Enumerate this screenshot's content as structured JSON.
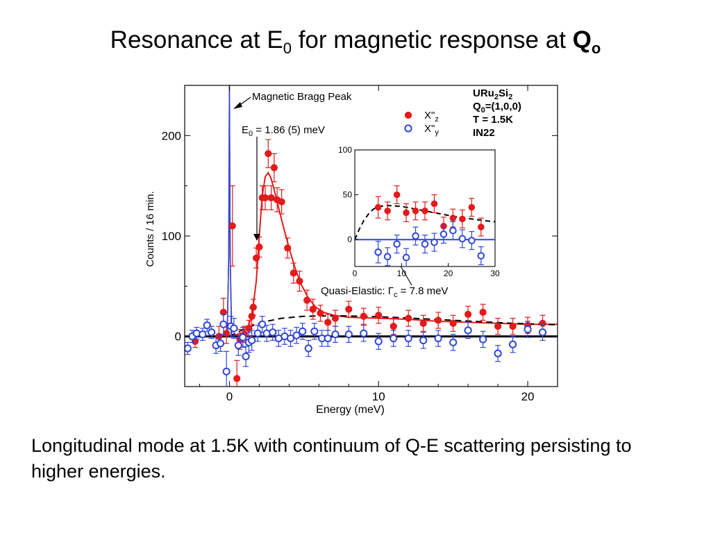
{
  "title": {
    "prefix": "Resonance at E",
    "sub1": "0",
    "middle": " for magnetic response at ",
    "bold": "Q",
    "sub2": "o"
  },
  "caption": "Longitudinal mode at 1.5K with continuum of Q-E scattering persisting to higher energies.",
  "colors": {
    "red": "#e31b1b",
    "blue": "#2f46d9",
    "black": "#000000"
  },
  "chart_data": [
    {
      "type": "scatter",
      "xlabel": "Energy (meV)",
      "ylabel": "Counts / 16 min.",
      "xlim": [
        -3,
        22
      ],
      "ylim": [
        -50,
        250
      ],
      "xticks": [
        0,
        10,
        20
      ],
      "yticks": [
        0,
        100,
        200
      ],
      "legend_position": "top-right",
      "info_lines": [
        {
          "main": "URu",
          "sub": "2",
          "tail": "Si",
          "sub2": "2"
        },
        {
          "main": "Q",
          "sub": "0",
          "tail": "=(1,0,0)",
          "sub2": ""
        },
        {
          "main": "T = 1.5K",
          "sub": "",
          "tail": "",
          "sub2": ""
        },
        {
          "main": "IN22",
          "sub": "",
          "tail": "",
          "sub2": ""
        }
      ],
      "annotations": {
        "bragg": "Magnetic Bragg Peak",
        "e0_main": "E",
        "e0_sub": "0",
        "e0_tail": " = 1.86 (5) meV",
        "qe_main": "Quasi-Elastic: ",
        "qe_gamma": "Γ",
        "qe_sub": "c",
        "qe_tail": " = 7.8 meV"
      },
      "series": [
        {
          "name": "X\"z",
          "legend_main": "X\"",
          "legend_sub": "z",
          "marker": "filled-circle",
          "color": "#e31b1b",
          "points": [
            [
              -2.3,
              -5,
              6
            ],
            [
              -0.7,
              0,
              10
            ],
            [
              -0.4,
              24,
              14
            ],
            [
              -0.2,
              3,
              10
            ],
            [
              0.2,
              110,
              40
            ],
            [
              0.5,
              -42,
              18
            ],
            [
              0.7,
              -3,
              10
            ],
            [
              1.0,
              2,
              8
            ],
            [
              1.3,
              8,
              8
            ],
            [
              1.5,
              20,
              8
            ],
            [
              1.6,
              29,
              8
            ],
            [
              1.8,
              78,
              10
            ],
            [
              2.0,
              89,
              10
            ],
            [
              2.2,
              138,
              12
            ],
            [
              2.4,
              138,
              12
            ],
            [
              2.6,
              182,
              14
            ],
            [
              2.8,
              138,
              12
            ],
            [
              3.0,
              168,
              14
            ],
            [
              3.2,
              136,
              12
            ],
            [
              3.5,
              134,
              12
            ],
            [
              3.9,
              88,
              10
            ],
            [
              4.3,
              63,
              10
            ],
            [
              4.7,
              55,
              10
            ],
            [
              5.2,
              36,
              10
            ],
            [
              5.6,
              27,
              10
            ],
            [
              6.1,
              23,
              8
            ],
            [
              6.6,
              14,
              8
            ],
            [
              7.1,
              18,
              8
            ],
            [
              8.0,
              27,
              8
            ],
            [
              9.0,
              20,
              8
            ],
            [
              10.0,
              21,
              8
            ],
            [
              11.0,
              10,
              8
            ],
            [
              12.0,
              18,
              8
            ],
            [
              13.0,
              13,
              8
            ],
            [
              14.0,
              16,
              8
            ],
            [
              15.0,
              13,
              8
            ],
            [
              16.0,
              22,
              8
            ],
            [
              17.0,
              24,
              8
            ],
            [
              18.0,
              10,
              8
            ],
            [
              19.0,
              10,
              8
            ],
            [
              20.0,
              11,
              8
            ],
            [
              21.0,
              13,
              8
            ]
          ]
        },
        {
          "name": "X\"y",
          "legend_main": "X\"",
          "legend_sub": "y",
          "marker": "open-circle",
          "color": "#2f46d9",
          "points": [
            [
              -2.8,
              -12,
              6
            ],
            [
              -2.5,
              0,
              6
            ],
            [
              -2.2,
              3,
              6
            ],
            [
              -1.8,
              2,
              6
            ],
            [
              -1.5,
              11,
              6
            ],
            [
              -1.2,
              4,
              6
            ],
            [
              -0.9,
              -9,
              8
            ],
            [
              -0.6,
              -7,
              8
            ],
            [
              -0.4,
              12,
              10
            ],
            [
              -0.2,
              -35,
              20
            ],
            [
              0.1,
              10,
              10
            ],
            [
              0.3,
              8,
              10
            ],
            [
              0.6,
              -9,
              10
            ],
            [
              0.9,
              -1,
              10
            ],
            [
              1.1,
              -20,
              10
            ],
            [
              1.3,
              -6,
              10
            ],
            [
              1.5,
              -4,
              10
            ],
            [
              1.9,
              3,
              8
            ],
            [
              2.2,
              12,
              8
            ],
            [
              2.5,
              3,
              8
            ],
            [
              2.9,
              4,
              8
            ],
            [
              3.3,
              -2,
              8
            ],
            [
              3.7,
              0,
              8
            ],
            [
              4.1,
              -2,
              8
            ],
            [
              4.5,
              1,
              8
            ],
            [
              4.9,
              5,
              8
            ],
            [
              5.3,
              -12,
              8
            ],
            [
              5.7,
              5,
              8
            ],
            [
              6.2,
              -2,
              8
            ],
            [
              6.6,
              -2,
              8
            ],
            [
              7.1,
              2,
              8
            ],
            [
              8.0,
              2,
              8
            ],
            [
              9.0,
              3,
              8
            ],
            [
              10.0,
              -5,
              8
            ],
            [
              11.0,
              -2,
              8
            ],
            [
              12.0,
              -2,
              8
            ],
            [
              13.0,
              -4,
              8
            ],
            [
              14.0,
              -2,
              8
            ],
            [
              15.0,
              -6,
              8
            ],
            [
              16.0,
              6,
              8
            ],
            [
              17.0,
              -3,
              8
            ],
            [
              18.0,
              -17,
              8
            ],
            [
              19.0,
              -8,
              8
            ],
            [
              20.0,
              7,
              8
            ],
            [
              21.0,
              4,
              8
            ]
          ]
        }
      ],
      "curves": [
        {
          "role": "resonance fit",
          "color": "#e31b1b",
          "style": "solid",
          "points": [
            [
              -0.5,
              0
            ],
            [
              0.2,
              1
            ],
            [
              0.8,
              3
            ],
            [
              1.2,
              8
            ],
            [
              1.5,
              20
            ],
            [
              1.8,
              55
            ],
            [
              2.0,
              100
            ],
            [
              2.2,
              140
            ],
            [
              2.4,
              159
            ],
            [
              2.6,
              163
            ],
            [
              2.8,
              157
            ],
            [
              3.0,
              146
            ],
            [
              3.3,
              128
            ],
            [
              3.6,
              110
            ],
            [
              4.0,
              88
            ],
            [
              4.4,
              68
            ],
            [
              4.8,
              52
            ],
            [
              5.3,
              38
            ],
            [
              5.8,
              29
            ],
            [
              6.3,
              24
            ],
            [
              7.0,
              21
            ],
            [
              8.0,
              19
            ],
            [
              10.0,
              18
            ],
            [
              12.0,
              17
            ],
            [
              14.0,
              15
            ],
            [
              16.0,
              14
            ],
            [
              18.0,
              13
            ],
            [
              20.0,
              12
            ],
            [
              22.0,
              12
            ]
          ]
        },
        {
          "role": "quasi-elastic",
          "color": "#000000",
          "style": "dashed",
          "points": [
            [
              0,
              0
            ],
            [
              0.8,
              6
            ],
            [
              1.6,
              11
            ],
            [
              2.5,
              15
            ],
            [
              3.5,
              18
            ],
            [
              5.0,
              20
            ],
            [
              7.0,
              20.5
            ],
            [
              9.0,
              20
            ],
            [
              11.0,
              19
            ],
            [
              13.0,
              17.5
            ],
            [
              15.0,
              16
            ],
            [
              17.0,
              14.5
            ],
            [
              19.0,
              13
            ],
            [
              21.0,
              12
            ],
            [
              22.0,
              11.5
            ]
          ]
        },
        {
          "role": "background",
          "color": "#000000",
          "style": "solid",
          "points": [
            [
              -3,
              0
            ],
            [
              22,
              0
            ]
          ]
        },
        {
          "role": "magnetic Bragg peak",
          "color": "#e31b1b",
          "style": "solid",
          "points": [
            [
              -0.15,
              0
            ],
            [
              -0.05,
              80
            ],
            [
              0.0,
              250
            ],
            [
              0.05,
              80
            ],
            [
              0.15,
              0
            ]
          ]
        },
        {
          "role": "magnetic Bragg peak",
          "color": "#2f46d9",
          "style": "solid",
          "points": [
            [
              -0.15,
              0
            ],
            [
              -0.05,
              80
            ],
            [
              0.0,
              250
            ],
            [
              0.05,
              80
            ],
            [
              0.15,
              0
            ]
          ]
        }
      ]
    },
    {
      "type": "scatter",
      "role": "inset",
      "xlim": [
        0,
        30
      ],
      "ylim": [
        -30,
        100
      ],
      "xticks": [
        0,
        10,
        20,
        30
      ],
      "yticks": [
        0,
        50,
        100
      ],
      "series": [
        {
          "name": "X\"z",
          "marker": "filled-circle",
          "color": "#e31b1b",
          "points": [
            [
              5,
              36,
              12
            ],
            [
              7,
              32,
              10
            ],
            [
              9,
              50,
              10
            ],
            [
              11,
              30,
              10
            ],
            [
              13,
              32,
              10
            ],
            [
              15,
              32,
              10
            ],
            [
              17,
              40,
              10
            ],
            [
              19,
              15,
              10
            ],
            [
              21,
              24,
              10
            ],
            [
              23,
              23,
              10
            ],
            [
              25,
              36,
              10
            ],
            [
              27,
              14,
              10
            ]
          ]
        },
        {
          "name": "X\"y",
          "marker": "open-circle",
          "color": "#2f46d9",
          "points": [
            [
              5,
              -14,
              12
            ],
            [
              7,
              -19,
              10
            ],
            [
              9,
              -5,
              10
            ],
            [
              11,
              -20,
              10
            ],
            [
              13,
              4,
              10
            ],
            [
              15,
              -5,
              10
            ],
            [
              17,
              -3,
              10
            ],
            [
              19,
              6,
              10
            ],
            [
              21,
              10,
              10
            ],
            [
              23,
              1,
              10
            ],
            [
              25,
              -1,
              10
            ],
            [
              27,
              -18,
              10
            ]
          ]
        }
      ],
      "curves": [
        {
          "role": "quasi-elastic",
          "color": "#000000",
          "style": "dashed",
          "points": [
            [
              0,
              0
            ],
            [
              1,
              12
            ],
            [
              2,
              22
            ],
            [
              3,
              29
            ],
            [
              4,
              34
            ],
            [
              5,
              37
            ],
            [
              7,
              38
            ],
            [
              10,
              37
            ],
            [
              13,
              34
            ],
            [
              16,
              31
            ],
            [
              19,
              28
            ],
            [
              22,
              25
            ],
            [
              25,
              23
            ],
            [
              28,
              21
            ],
            [
              30,
              20
            ]
          ]
        },
        {
          "role": "background",
          "color": "#2f46d9",
          "style": "solid",
          "points": [
            [
              0,
              0
            ],
            [
              30,
              0
            ]
          ]
        }
      ]
    }
  ]
}
